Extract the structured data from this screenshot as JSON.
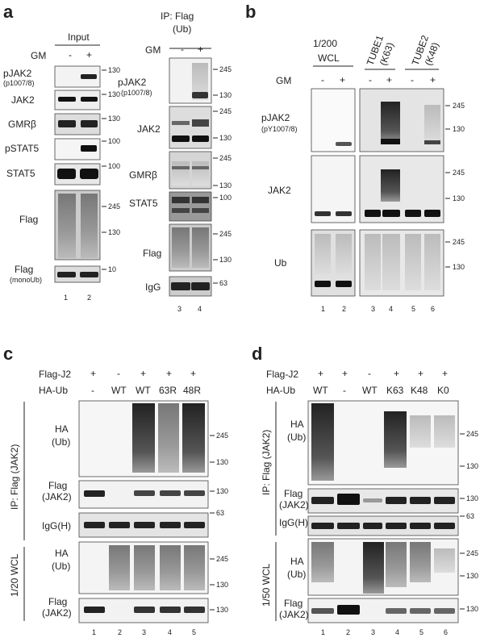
{
  "panel_letters": {
    "a": "a",
    "b": "b",
    "c": "c",
    "d": "d"
  },
  "panel_a": {
    "input_title": "Input",
    "ip_title_1": "IP: Flag",
    "ip_title_2": "(Ub)",
    "gm_label": "GM",
    "gm_minus": "-",
    "gm_plus": "+",
    "rows_left": [
      {
        "label": "pJAK2",
        "sub": "(p1007/8)",
        "marker": "130"
      },
      {
        "label": "JAK2",
        "sub": "",
        "marker": "130"
      },
      {
        "label": "GMRβ",
        "sub": "",
        "marker": "130"
      },
      {
        "label": "pSTAT5",
        "sub": "",
        "marker": "100"
      },
      {
        "label": "STAT5",
        "sub": "",
        "marker": "100"
      },
      {
        "label": "Flag",
        "sub": "",
        "marker": "245",
        "marker2": "130"
      },
      {
        "label": "Flag",
        "sub": "(monoUb)",
        "marker": "10"
      }
    ],
    "rows_right": [
      {
        "label": "pJAK2",
        "sub": "(p1007/8)",
        "marker": "245",
        "marker2": "130"
      },
      {
        "label": "JAK2",
        "sub": "",
        "marker": "245",
        "marker2": "130"
      },
      {
        "label": "GMRβ",
        "sub": "",
        "marker": "245",
        "marker2": "130"
      },
      {
        "label": "STAT5",
        "sub": "",
        "marker": "100"
      },
      {
        "label": "Flag",
        "sub": "",
        "marker": "245",
        "marker2": "130"
      },
      {
        "label": "IgG",
        "sub": "",
        "marker": "63"
      }
    ],
    "lanes_left": [
      "1",
      "2"
    ],
    "lanes_right": [
      "3",
      "4"
    ]
  },
  "panel_b": {
    "wcl_1": "1/200",
    "wcl_2": "WCL",
    "tube1_1": "TUBE1",
    "tube1_2": "(K63)",
    "tube2_1": "TUBE2",
    "tube2_2": "(K48)",
    "gm_label": "GM",
    "gm_signs": [
      "-",
      "+",
      "-",
      "+",
      "-",
      "+"
    ],
    "rows": [
      {
        "label": "pJAK2",
        "sub": "(pY1007/8)",
        "marker": "245",
        "marker2": "130"
      },
      {
        "label": "JAK2",
        "sub": "",
        "marker": "245",
        "marker2": "130"
      },
      {
        "label": "Ub",
        "sub": "",
        "marker": "245",
        "marker2": "130"
      }
    ],
    "lanes": [
      "1",
      "2",
      "3",
      "4",
      "5",
      "6"
    ]
  },
  "panel_c": {
    "flag_label": "Flag-J2",
    "ha_label": "HA-Ub",
    "flag_signs": [
      "+",
      "-",
      "+",
      "+",
      "+"
    ],
    "ha_values": [
      "-",
      "WT",
      "WT",
      "63R",
      "48R"
    ],
    "ip_side": "IP: Flag (JAK2)",
    "wcl_side": "1/20 WCL",
    "rows": [
      {
        "label": "HA",
        "sub": "(Ub)",
        "marker": "245",
        "marker2": "130"
      },
      {
        "label": "Flag",
        "sub": "(JAK2)",
        "marker": "130"
      },
      {
        "label": "IgG(H)",
        "sub": "",
        "marker": "63"
      },
      {
        "label": "HA",
        "sub": "(Ub)",
        "marker": "245",
        "marker2": "130"
      },
      {
        "label": "Flag",
        "sub": "(JAK2)",
        "marker": "130"
      }
    ],
    "lanes": [
      "1",
      "2",
      "3",
      "4",
      "5"
    ]
  },
  "panel_d": {
    "flag_label": "Flag-J2",
    "ha_label": "HA-Ub",
    "flag_signs": [
      "+",
      "+",
      "-",
      "+",
      "+",
      "+"
    ],
    "ha_values": [
      "WT",
      "-",
      "WT",
      "K63",
      "K48",
      "K0"
    ],
    "ip_side": "IP: Flag (JAK2)",
    "wcl_side": "1/50 WCL",
    "rows": [
      {
        "label": "HA",
        "sub": "(Ub)",
        "marker": "245",
        "marker2": "130"
      },
      {
        "label": "Flag",
        "sub": "(JAK2)",
        "marker": "130"
      },
      {
        "label": "IgG(H)",
        "sub": "",
        "marker": "63"
      },
      {
        "label": "HA",
        "sub": "(Ub)",
        "marker": "245",
        "marker2": "130"
      },
      {
        "label": "Flag",
        "sub": "(JAK2)",
        "marker": "130"
      }
    ],
    "lanes": [
      "1",
      "2",
      "3",
      "4",
      "5",
      "6"
    ]
  }
}
